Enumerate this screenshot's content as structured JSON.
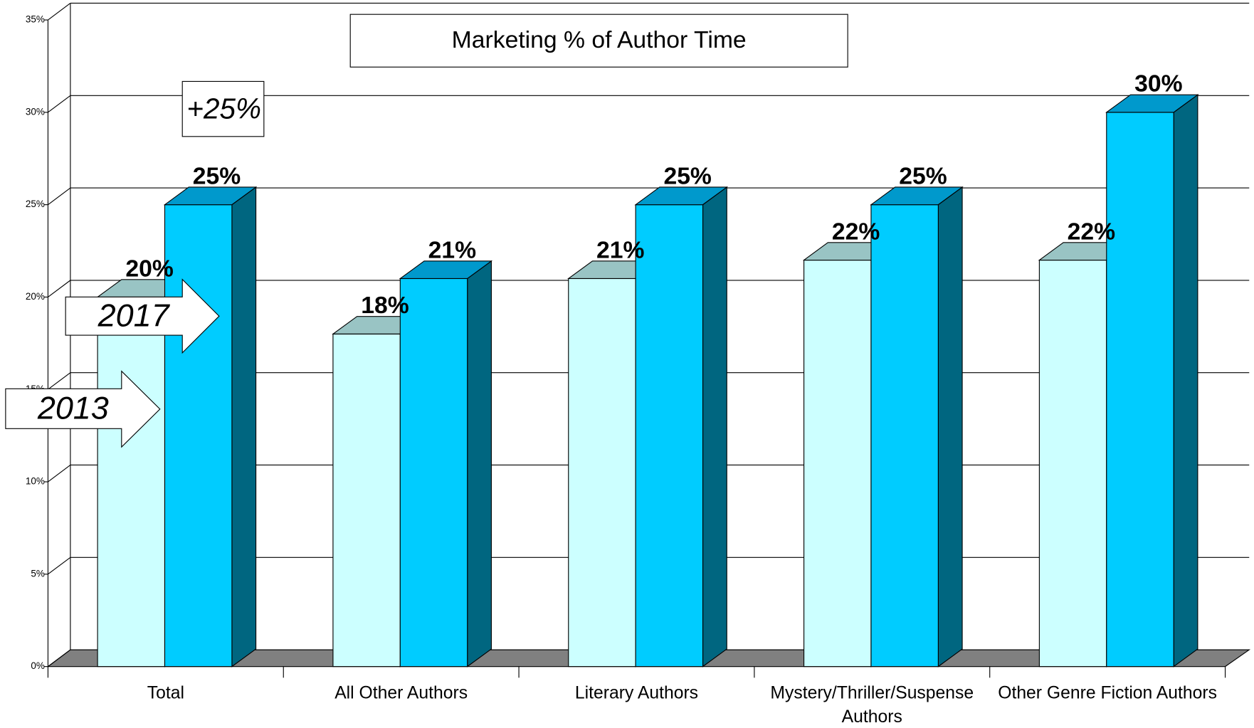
{
  "chart_data": {
    "type": "bar3d",
    "title": "Marketing % of Author Time",
    "categories": [
      "Total",
      "All Other Authors",
      "Literary Authors",
      "Mystery/Thriller/Suspense Authors",
      "Other Genre Fiction Authors"
    ],
    "series": [
      {
        "name": "2013",
        "color": "#ccffff",
        "top_color": "#99c4c4",
        "side_color": "#669999",
        "values": [
          20,
          18,
          21,
          22,
          22
        ],
        "value_labels": [
          "20%",
          "18%",
          "21%",
          "22%",
          "22%"
        ]
      },
      {
        "name": "2017",
        "color": "#00ccff",
        "top_color": "#0099cc",
        "side_color": "#006680",
        "values": [
          25,
          21,
          25,
          25,
          30
        ],
        "value_labels": [
          "25%",
          "21%",
          "25%",
          "25%",
          "30%"
        ]
      }
    ],
    "annotations": [
      "+25%"
    ],
    "ylim": [
      0,
      35
    ],
    "yticks": [
      {
        "value": 0,
        "label": "0%"
      },
      {
        "value": 5,
        "label": "5%"
      },
      {
        "value": 10,
        "label": "10%"
      },
      {
        "value": 15,
        "label": "15%"
      },
      {
        "value": 20,
        "label": "20%"
      },
      {
        "value": 25,
        "label": "25%"
      },
      {
        "value": 30,
        "label": "30%"
      },
      {
        "value": 35,
        "label": "35%"
      }
    ],
    "grid": true,
    "floor_color": "#808080"
  }
}
